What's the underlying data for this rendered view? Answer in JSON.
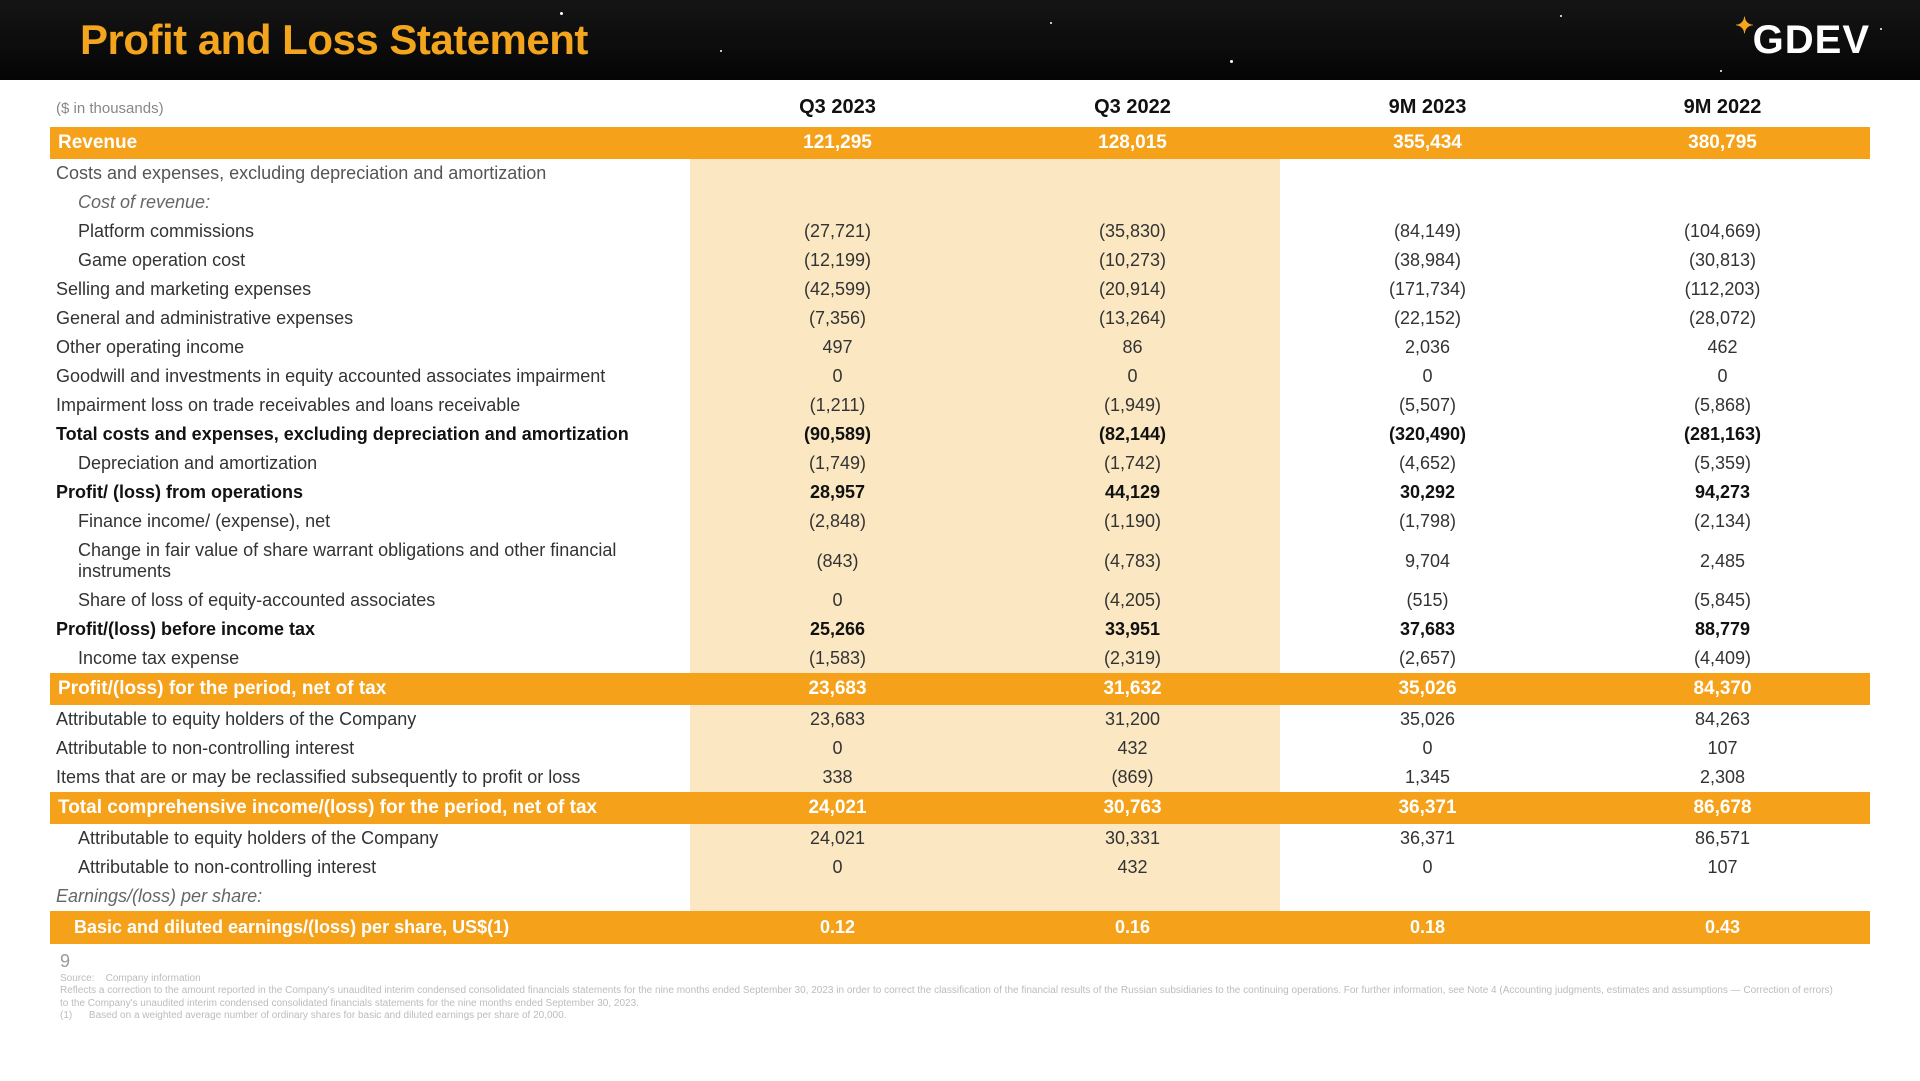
{
  "header": {
    "title": "Profit and Loss Statement",
    "logo_text": "GDEV",
    "title_color": "#f4a51e",
    "bg_color": "#0f0f0f"
  },
  "table": {
    "units_label": "($ in thousands)",
    "columns": [
      "Q3 2023",
      "Q3 2022",
      "9M 2023",
      "9M 2022"
    ],
    "shaded_columns": [
      0,
      1
    ],
    "highlight_bg": "#f5a11a",
    "highlight_fg": "#ffffff",
    "shade_bg": "#fbe8c3",
    "rows": [
      {
        "type": "highlight",
        "label": "Revenue",
        "values": [
          "121,295",
          "128,015",
          "355,434",
          "380,795"
        ]
      },
      {
        "type": "section",
        "label": "Costs and expenses, excluding depreciation and amortization",
        "values": [
          "",
          "",
          "",
          ""
        ]
      },
      {
        "type": "italic",
        "indent": 1,
        "label": "Cost of revenue:",
        "values": [
          "",
          "",
          "",
          ""
        ]
      },
      {
        "indent": 2,
        "label": "Platform commissions",
        "values": [
          "(27,721)",
          "(35,830)",
          "(84,149)",
          "(104,669)"
        ]
      },
      {
        "indent": 2,
        "label": "Game operation cost",
        "values": [
          "(12,199)",
          "(10,273)",
          "(38,984)",
          "(30,813)"
        ]
      },
      {
        "label": "Selling and marketing expenses",
        "values": [
          "(42,599)",
          "(20,914)",
          "(171,734)",
          "(112,203)"
        ]
      },
      {
        "label": "General and administrative expenses",
        "values": [
          "(7,356)",
          "(13,264)",
          "(22,152)",
          "(28,072)"
        ]
      },
      {
        "label": "Other operating income",
        "values": [
          "497",
          "86",
          "2,036",
          "462"
        ]
      },
      {
        "label": "Goodwill and investments in equity accounted associates impairment",
        "values": [
          "0",
          "0",
          "0",
          "0"
        ]
      },
      {
        "label": "Impairment loss on trade receivables and loans receivable",
        "values": [
          "(1,211)",
          "(1,949)",
          "(5,507)",
          "(5,868)"
        ]
      },
      {
        "type": "bold",
        "label": "Total costs and expenses, excluding depreciation and amortization",
        "values": [
          "(90,589)",
          "(82,144)",
          "(320,490)",
          "(281,163)"
        ]
      },
      {
        "indent": 1,
        "label": "Depreciation and amortization",
        "values": [
          "(1,749)",
          "(1,742)",
          "(4,652)",
          "(5,359)"
        ]
      },
      {
        "type": "bold",
        "label": "Profit/ (loss) from operations",
        "values": [
          "28,957",
          "44,129",
          "30,292",
          "94,273"
        ]
      },
      {
        "indent": 1,
        "label": "Finance income/ (expense), net",
        "values": [
          "(2,848)",
          "(1,190)",
          "(1,798)",
          "(2,134)"
        ]
      },
      {
        "indent": 1,
        "label": "Change in fair value of share warrant obligations and other financial instruments",
        "values": [
          "(843)",
          "(4,783)",
          "9,704",
          "2,485"
        ]
      },
      {
        "indent": 1,
        "label": "Share of loss of equity-accounted associates",
        "values": [
          "0",
          "(4,205)",
          "(515)",
          "(5,845)"
        ]
      },
      {
        "type": "bold",
        "label": "Profit/(loss) before income tax",
        "values": [
          "25,266",
          "33,951",
          "37,683",
          "88,779"
        ]
      },
      {
        "indent": 1,
        "label": "Income tax expense",
        "values": [
          "(1,583)",
          "(2,319)",
          "(2,657)",
          "(4,409)"
        ]
      },
      {
        "type": "highlight",
        "label": "Profit/(loss) for the period, net of tax",
        "values": [
          "23,683",
          "31,632",
          "35,026",
          "84,370"
        ]
      },
      {
        "label": "Attributable to equity holders of the Company",
        "values": [
          "23,683",
          "31,200",
          "35,026",
          "84,263"
        ]
      },
      {
        "label": "Attributable to non-controlling interest",
        "values": [
          "0",
          "432",
          "0",
          "107"
        ]
      },
      {
        "label": "Items that are or may be reclassified subsequently to profit or loss",
        "values": [
          "338",
          "(869)",
          "1,345",
          "2,308"
        ]
      },
      {
        "type": "highlight",
        "label": "Total comprehensive income/(loss) for the period, net of tax",
        "values": [
          "24,021",
          "30,763",
          "36,371",
          "86,678"
        ]
      },
      {
        "indent": 1,
        "label": "Attributable to equity holders of the Company",
        "values": [
          "24,021",
          "30,331",
          "36,371",
          "86,571"
        ]
      },
      {
        "indent": 1,
        "label": "Attributable to non-controlling interest",
        "values": [
          "0",
          "432",
          "0",
          "107"
        ]
      },
      {
        "type": "italic",
        "label": "Earnings/(loss) per share:",
        "values": [
          "",
          "",
          "",
          ""
        ]
      },
      {
        "type": "eps",
        "indent": 1,
        "label": "Basic and diluted earnings/(loss) per share, US$ⁱ¹⁲",
        "label_plain": "Basic and diluted earnings/(loss) per share, US$(1)",
        "values": [
          "0.12",
          "0.16",
          "0.18",
          "0.43"
        ]
      }
    ]
  },
  "footer": {
    "page_number": "9",
    "source_label": "Source:",
    "source_value": "Company information",
    "note_main": "Reflects a correction to the amount reported in the Company's unaudited interim condensed consolidated financials statements for the nine months ended September 30, 2023 in order to correct the classification of the financial results of the Russian subsidiaries to the continuing operations. For further information, see Note 4 (Accounting judgments, estimates and assumptions — Correction of errors) to the Company's unaudited interim condensed consolidated financials statements for the nine months ended September 30, 2023.",
    "note_1_label": "(1)",
    "note_1": "Based on a weighted average number of ordinary shares for basic and diluted earnings per share of 20,000."
  }
}
